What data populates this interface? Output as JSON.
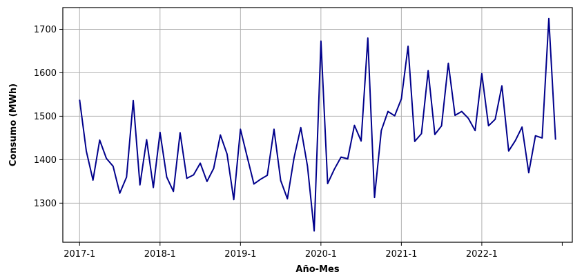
{
  "chart_data": {
    "type": "line",
    "title": "",
    "xlabel": "Año-Mes",
    "ylabel": "Consumo (MWh)",
    "x_tick_labels": [
      "2017-1",
      "2018-1",
      "2019-1",
      "2020-1",
      "2021-1",
      "2022-1",
      ""
    ],
    "x_tick_positions": [
      "2017-1",
      "2018-1",
      "2019-1",
      "2020-1",
      "2021-1",
      "2022-1",
      "2023-1"
    ],
    "y_ticks": [
      1300,
      1400,
      1500,
      1600,
      1700
    ],
    "ylim": [
      1210,
      1750
    ],
    "xlim": [
      "2016-10",
      "2023-3"
    ],
    "grid": true,
    "series": [
      {
        "color": "#00008b",
        "x": [
          "2017-1",
          "2017-2",
          "2017-3",
          "2017-4",
          "2017-5",
          "2017-6",
          "2017-7",
          "2017-8",
          "2017-9",
          "2017-10",
          "2017-11",
          "2017-12",
          "2018-1",
          "2018-2",
          "2018-3",
          "2018-4",
          "2018-5",
          "2018-6",
          "2018-7",
          "2018-8",
          "2018-9",
          "2018-10",
          "2018-11",
          "2018-12",
          "2019-1",
          "2019-2",
          "2019-3",
          "2019-4",
          "2019-5",
          "2019-6",
          "2019-7",
          "2019-8",
          "2019-9",
          "2019-10",
          "2019-11",
          "2019-12",
          "2020-1",
          "2020-2",
          "2020-3",
          "2020-4",
          "2020-5",
          "2020-6",
          "2020-7",
          "2020-8",
          "2020-9",
          "2020-10",
          "2020-11",
          "2020-12",
          "2021-1",
          "2021-2",
          "2021-3",
          "2021-4",
          "2021-5",
          "2021-6",
          "2021-7",
          "2021-8",
          "2021-9",
          "2021-10",
          "2021-11",
          "2021-12",
          "2022-1",
          "2022-2",
          "2022-3",
          "2022-4",
          "2022-5",
          "2022-6",
          "2022-7",
          "2022-8",
          "2022-9",
          "2022-10",
          "2022-11",
          "2022-12"
        ],
        "values": [
          1538,
          1420,
          1353,
          1445,
          1403,
          1385,
          1323,
          1360,
          1536,
          1342,
          1446,
          1336,
          1463,
          1360,
          1327,
          1462,
          1357,
          1365,
          1392,
          1350,
          1380,
          1457,
          1413,
          1308,
          1470,
          1407,
          1344,
          1355,
          1364,
          1470,
          1352,
          1310,
          1405,
          1474,
          1385,
          1236,
          1673,
          1345,
          1378,
          1406,
          1402,
          1479,
          1443,
          1680,
          1313,
          1467,
          1511,
          1501,
          1540,
          1661,
          1442,
          1460,
          1605,
          1458,
          1478,
          1622,
          1502,
          1511,
          1495,
          1467,
          1598,
          1478,
          1493,
          1570,
          1420,
          1444,
          1475,
          1370,
          1455,
          1450,
          1725,
          1446
        ]
      }
    ]
  }
}
